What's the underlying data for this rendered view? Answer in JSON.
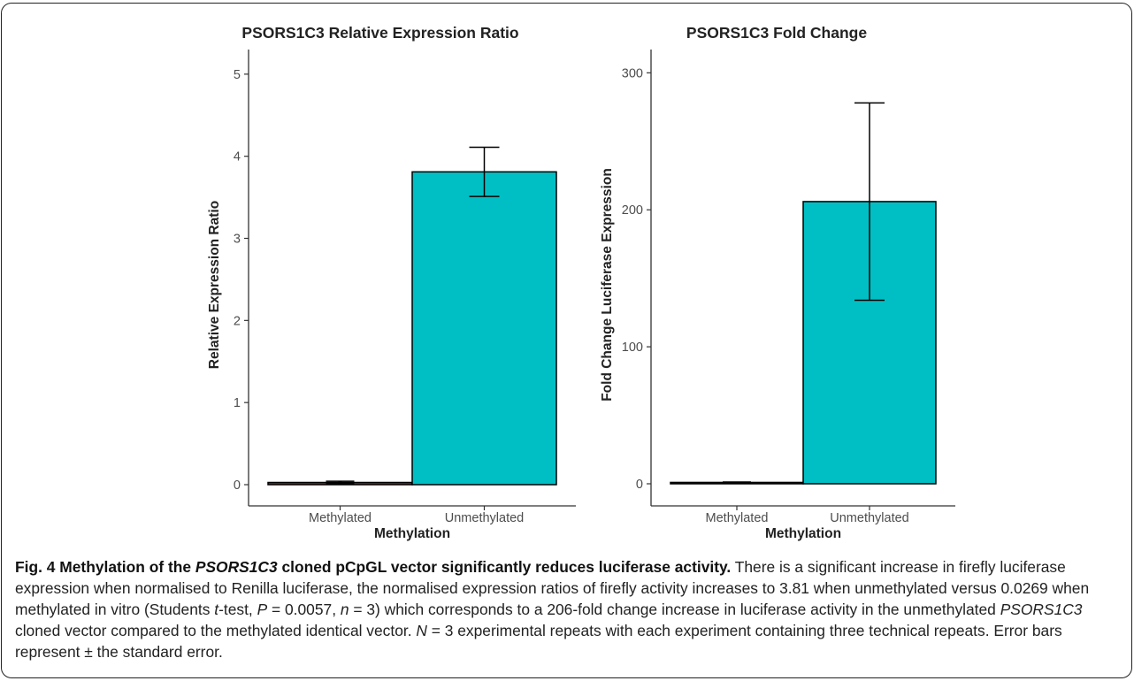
{
  "colors": {
    "bar_unmethylated": "#00BFC4",
    "bar_methylated": "#7B2A2A",
    "axis": "#333333",
    "text": "#222222"
  },
  "chart_data": [
    {
      "type": "bar",
      "title": "PSORS1C3 Relative Expression Ratio",
      "xlabel": "Methylation",
      "ylabel": "Relative Expression Ratio",
      "ylim": [
        0,
        5.3
      ],
      "yticks": [
        "0",
        "1",
        "2",
        "3",
        "4",
        "5"
      ],
      "categories": [
        "Methylated",
        "Unmethylated"
      ],
      "values": [
        0.0269,
        3.81
      ],
      "error": [
        0.015,
        0.3
      ],
      "grid": false
    },
    {
      "type": "bar",
      "title": "PSORS1C3 Fold Change",
      "xlabel": "Methylation",
      "ylabel": "Fold Change Luciferase Expression",
      "ylim": [
        0,
        317
      ],
      "yticks": [
        "0",
        "100",
        "200",
        "300"
      ],
      "categories": [
        "Methylated",
        "Unmethylated"
      ],
      "values": [
        1,
        206
      ],
      "error": [
        0.3,
        72
      ],
      "grid": false
    }
  ],
  "caption": {
    "lead_a": "Fig. 4 Methylation of the ",
    "lead_italic": "PSORS1C3",
    "lead_b": " cloned pCpGL vector significantly reduces luciferase activity.",
    "t1": " There is a significant increase in firefly luciferase expression when normalised to Renilla luciferase, the normalised expression ratios of firefly activity increases to 3.81 when unmethylated versus 0.0269 when methylated in vitro (Students ",
    "t_italic": "t",
    "t2": "-test, ",
    "p_italic": "P",
    "t3": " = 0.0057, ",
    "n_italic": "n",
    "t4": " = 3) which corresponds to a 206-fold change increase in luciferase activity in the unmethylated ",
    "gene_italic": "PSORS1C3",
    "t5": " cloned vector compared to the methylated identical vector. ",
    "N_italic": "N",
    "t6": " = 3 experimental repeats with each experiment containing three technical repeats. Error bars represent ± the standard error."
  }
}
